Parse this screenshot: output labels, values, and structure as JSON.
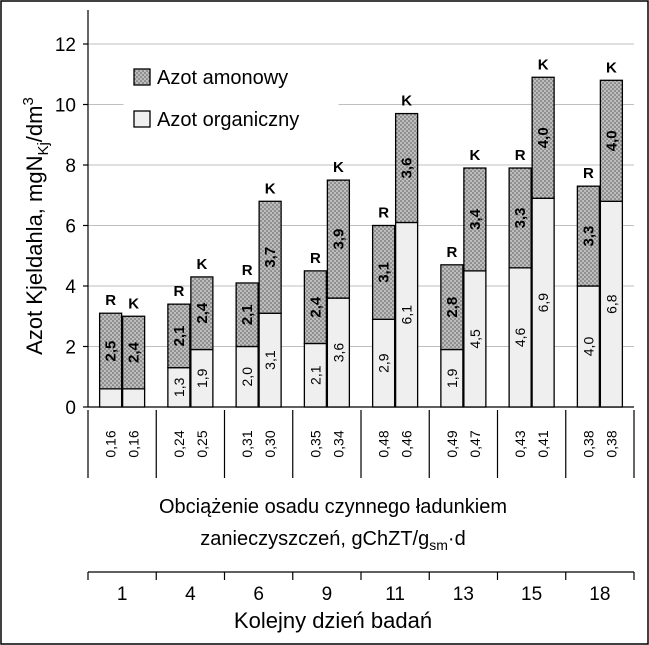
{
  "chart_data": {
    "type": "bar",
    "stacked": true,
    "ylabel": {
      "main": "Azot Kjeldahla, mgN",
      "sub": "Kj",
      "mid": "/dm",
      "sup": "3"
    },
    "xlabel": "Kolejny dzień badań",
    "ylim": [
      0,
      12
    ],
    "yticks": [
      "0",
      "2",
      "4",
      "6",
      "8",
      "10",
      "12"
    ],
    "grid": true,
    "legend_position": "top-left",
    "series": [
      {
        "name": "Azot organiczny",
        "color": "#efefef",
        "values": [
          0.6,
          0.6,
          1.3,
          1.9,
          2.0,
          3.1,
          2.1,
          3.6,
          2.9,
          6.1,
          1.9,
          4.5,
          4.6,
          6.9,
          4.0,
          6.8
        ],
        "labels": [
          "",
          "",
          "1,3",
          "1,9",
          "2,0",
          "3,1",
          "2,1",
          "3,6",
          "2,9",
          "6,1",
          "1,9",
          "4,5",
          "4,6",
          "6,9",
          "4,0",
          "6,8"
        ]
      },
      {
        "name": "Azot amonowy",
        "color": "#a6a6a6",
        "pattern": "dotted",
        "values": [
          2.5,
          2.4,
          2.1,
          2.4,
          2.1,
          3.7,
          2.4,
          3.9,
          3.1,
          3.6,
          2.8,
          3.4,
          3.3,
          4.0,
          3.3,
          4.0
        ],
        "labels": [
          "2,5",
          "2,4",
          "2,1",
          "2,4",
          "2,1",
          "3,7",
          "2,4",
          "3,9",
          "3,1",
          "3,6",
          "2,8",
          "3,4",
          "3,3",
          "4,0",
          "3,3",
          "4,0"
        ]
      }
    ],
    "bar_tags": [
      "R",
      "K",
      "R",
      "K",
      "R",
      "K",
      "R",
      "K",
      "R",
      "K",
      "R",
      "K",
      "R",
      "K",
      "R",
      "K"
    ],
    "load_values": [
      "0,16",
      "0,16",
      "0,24",
      "0,25",
      "0,31",
      "0,30",
      "0,35",
      "0,34",
      "0,48",
      "0,46",
      "0,49",
      "0,47",
      "0,43",
      "0,41",
      "0,38",
      "0,38"
    ],
    "load_caption": {
      "line1": "Obciążenie osadu czynnego ładunkiem",
      "line2_main": "zanieczyszczeń, gChZT/g",
      "line2_sub": "sm",
      "line2_end": "·d"
    },
    "days": [
      "1",
      "4",
      "6",
      "9",
      "11",
      "13",
      "15",
      "18"
    ]
  }
}
